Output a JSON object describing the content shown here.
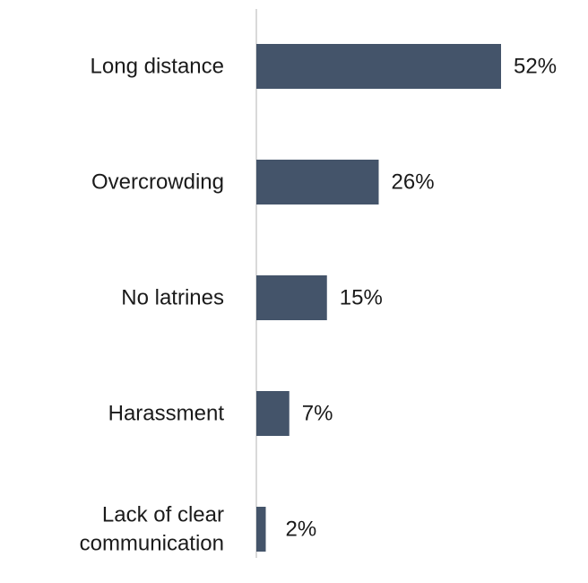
{
  "chart_data": {
    "type": "bar",
    "orientation": "horizontal",
    "categories": [
      "Long distance",
      "Overcrowding",
      "No latrines",
      "Harassment",
      "Lack of clear communication"
    ],
    "category_lines": [
      [
        "Long distance"
      ],
      [
        "Overcrowding"
      ],
      [
        "No latrines"
      ],
      [
        "Harassment"
      ],
      [
        "Lack of clear",
        "communication"
      ]
    ],
    "values": [
      52,
      26,
      15,
      7,
      2
    ],
    "value_labels": [
      "52%",
      "26%",
      "15%",
      "7%",
      "2%"
    ],
    "unit": "%",
    "xlim": [
      0,
      60
    ],
    "grid": false,
    "legend": "none",
    "bar_color": "#44546a",
    "axis_color": "#d9d9d9"
  }
}
